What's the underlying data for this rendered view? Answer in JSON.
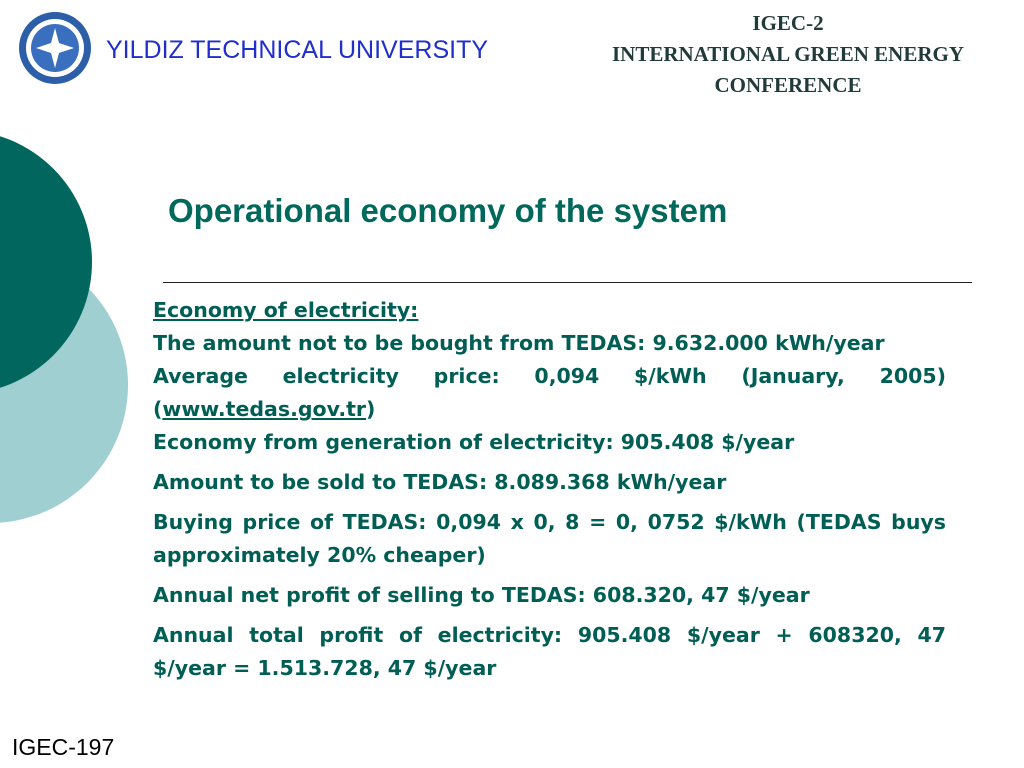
{
  "header": {
    "university": "YILDIZ TECHNICAL UNIVERSITY",
    "conference": [
      "IGEC-2",
      "INTERNATIONAL GREEN ENERGY",
      "CONFERENCE"
    ]
  },
  "slide": {
    "title": "Operational economy of the system",
    "heading": "Economy of electricity:",
    "body": [
      "The amount not to be bought from TEDAS: 9.632.000 kWh/year",
      {
        "text": "Average electricity price:  0,094 $/kWh (January, 2005) (",
        "link": "www.tedas.gov.tr",
        "after": ")"
      },
      "Economy from generation of electricity: 905.408 $/year",
      "Amount to be sold to TEDAS: 8.089.368 kWh/year",
      "Buying price of TEDAS: 0,094 x 0, 8 = 0, 0752 $/kWh (TEDAS buys approximately 20% cheaper)",
      "Annual net profit of selling to TEDAS: 608.320, 47 $/year",
      "Annual total profit of electricity: 905.408 $/year + 608320, 47 $/year = 1.513.728, 47 $/year"
    ]
  },
  "footer": "IGEC-197"
}
